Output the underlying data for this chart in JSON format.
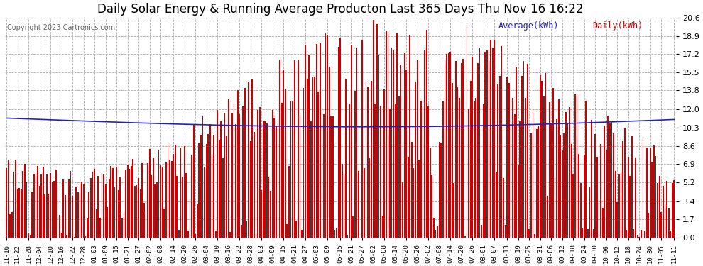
{
  "title": "Daily Solar Energy & Running Average Producton Last 365 Days Thu Nov 16 16:22",
  "copyright": "Copyright 2023 Cartronics.com",
  "legend_avg": "Average(kWh)",
  "legend_daily": "Daily(kWh)",
  "ylim": [
    0.0,
    20.6
  ],
  "yticks": [
    0.0,
    1.7,
    3.4,
    5.2,
    6.9,
    8.6,
    10.3,
    12.0,
    13.8,
    15.5,
    17.2,
    18.9,
    20.6
  ],
  "bar_color": "#cc0000",
  "avg_line_color": "#2222bb",
  "bg_color": "#ffffff",
  "grid_color": "#aaaaaa",
  "title_fontsize": 12,
  "x_labels": [
    "11-16",
    "11-22",
    "11-28",
    "12-04",
    "12-10",
    "12-16",
    "12-22",
    "12-28",
    "01-03",
    "01-09",
    "01-15",
    "01-21",
    "01-27",
    "02-02",
    "02-08",
    "02-14",
    "02-20",
    "02-26",
    "03-04",
    "03-10",
    "03-16",
    "03-22",
    "03-28",
    "04-03",
    "04-09",
    "04-15",
    "04-21",
    "04-27",
    "05-03",
    "05-09",
    "05-15",
    "05-21",
    "05-27",
    "06-02",
    "06-08",
    "06-14",
    "06-20",
    "06-26",
    "07-02",
    "07-08",
    "07-14",
    "07-20",
    "07-26",
    "08-01",
    "08-07",
    "08-13",
    "08-19",
    "08-25",
    "08-31",
    "09-06",
    "09-12",
    "09-18",
    "09-24",
    "09-30",
    "10-06",
    "10-12",
    "10-18",
    "10-24",
    "10-30",
    "11-05",
    "11-11"
  ]
}
